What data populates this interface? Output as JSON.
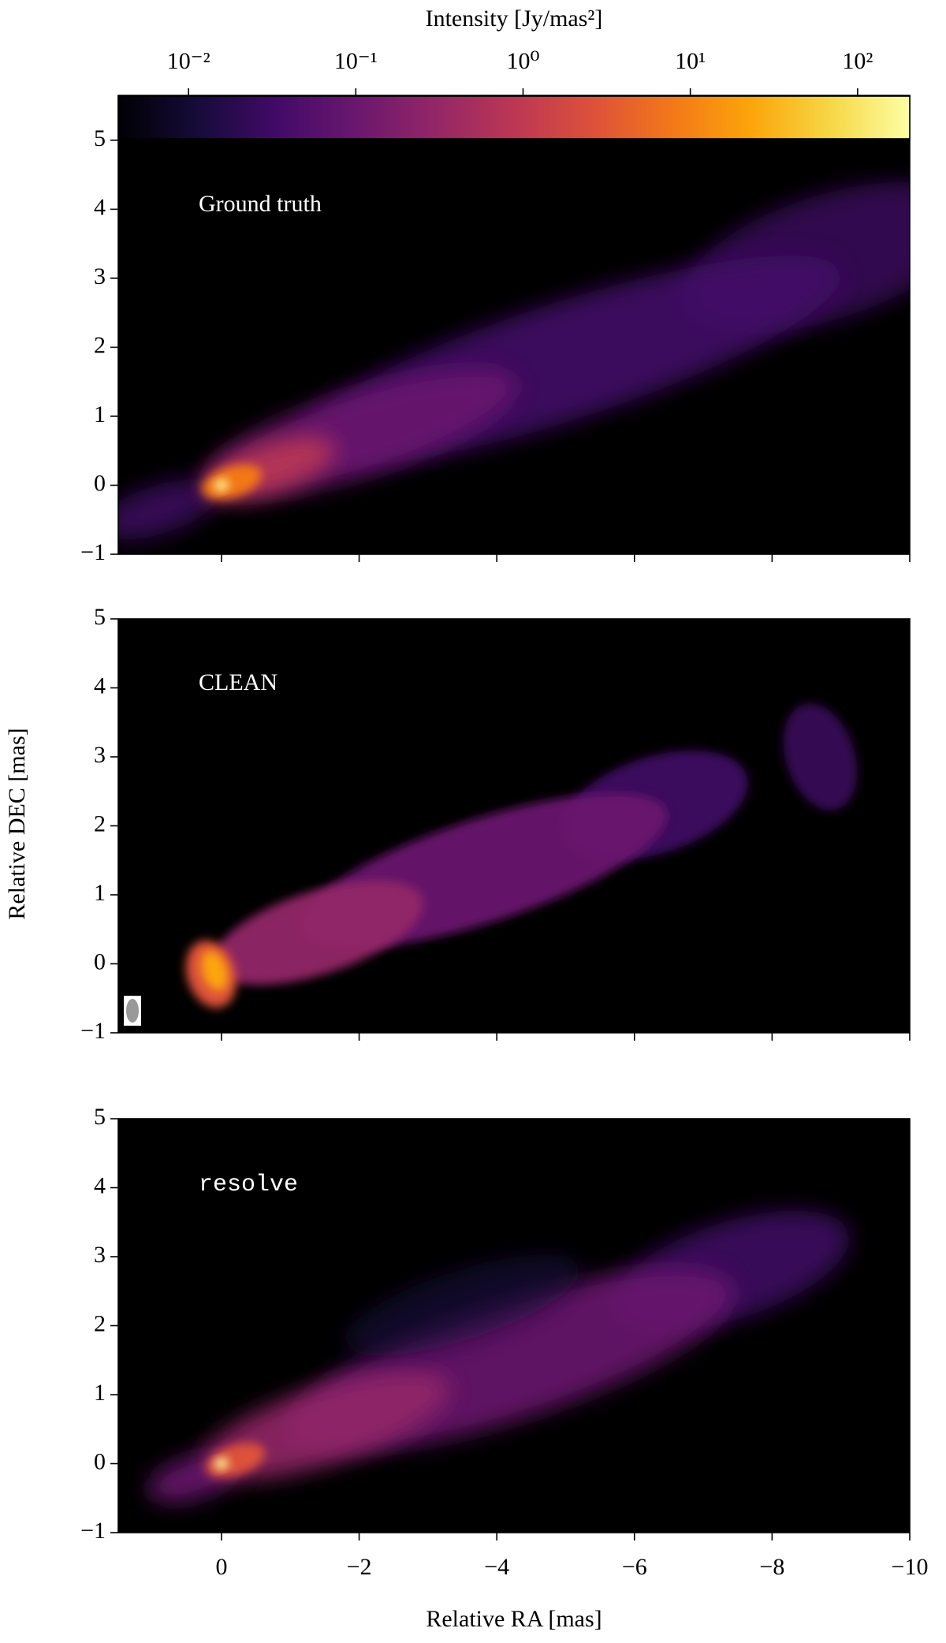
{
  "chart_data": {
    "type": "image",
    "xlabel": "Relative RA [mas]",
    "ylabel": "Relative DEC [mas]",
    "xlim": [
      1.5,
      -10
    ],
    "xticks": [
      0,
      {
        "value": -2,
        "label": "−2"
      },
      {
        "value": -4,
        "label": "−4"
      },
      {
        "value": -6,
        "label": "−6"
      },
      {
        "value": -8,
        "label": "−8"
      },
      {
        "value": -10,
        "label": "−10"
      }
    ],
    "colorbar": {
      "label": "Intensity [Jy/mas²]",
      "log": true,
      "colormap": "inferno",
      "lim": [
        0.0038,
        205
      ],
      "ticks": [
        {
          "value": 0.01,
          "label": "10⁻²"
        },
        {
          "value": 0.1,
          "label": "10⁻¹"
        },
        {
          "value": 1,
          "label": "10⁰"
        },
        {
          "value": 10,
          "label": "10¹"
        },
        {
          "value": 100,
          "label": "10²"
        }
      ]
    },
    "panels": [
      {
        "label": "Ground truth",
        "label_font": "serif",
        "ylim": [
          -1,
          5.65
        ],
        "yticks": [
          {
            "value": -1,
            "label": "−1"
          },
          0,
          1,
          2,
          3,
          4,
          5
        ]
      },
      {
        "label": "CLEAN",
        "label_font": "serif",
        "ylim": [
          -1,
          5
        ],
        "yticks": [
          {
            "value": -1,
            "label": "−1"
          },
          0,
          1,
          2,
          3,
          4,
          5
        ]
      },
      {
        "label": "resolve",
        "label_font": "monospace",
        "ylim": [
          -1,
          5
        ],
        "yticks": [
          {
            "value": -1,
            "label": "−1"
          },
          0,
          1,
          2,
          3,
          4,
          5
        ]
      }
    ]
  }
}
